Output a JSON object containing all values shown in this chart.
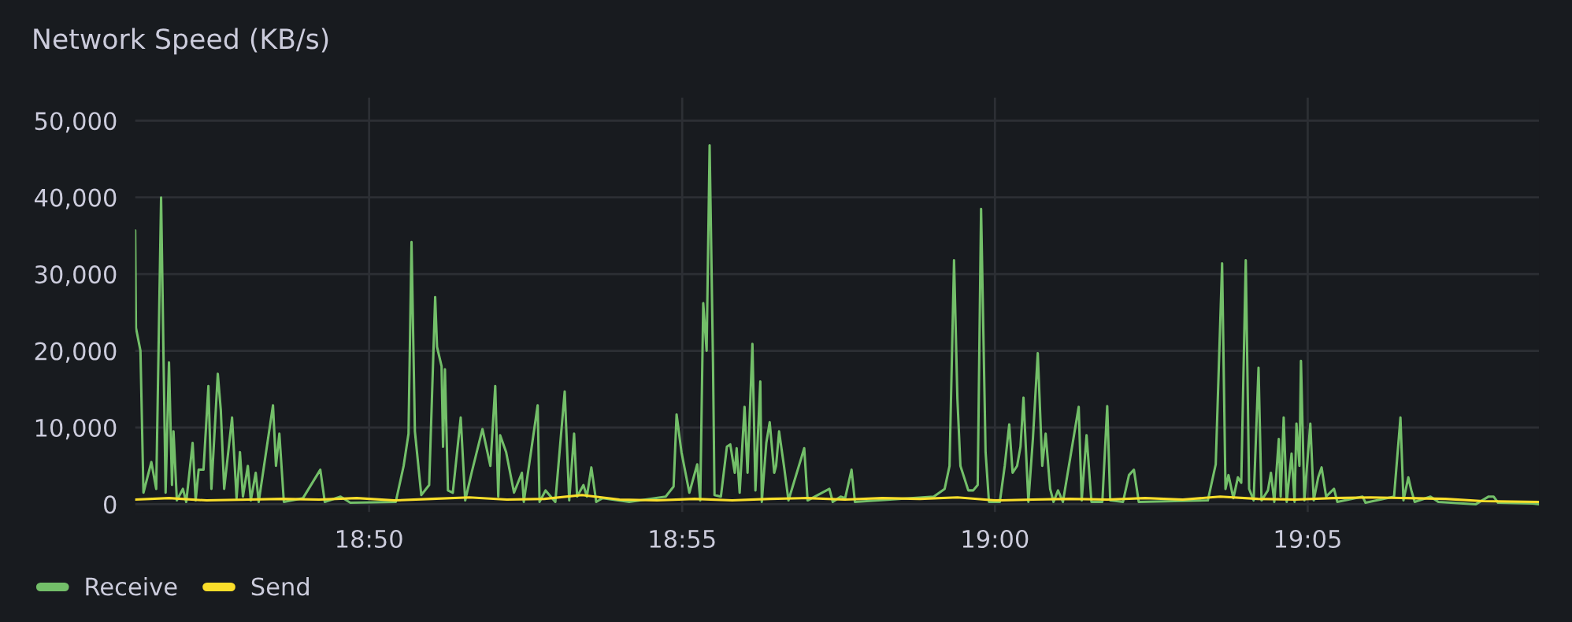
{
  "chart_data": {
    "type": "line",
    "title": "Network Speed (KB/s)",
    "xlim": [
      18.771,
      19.1449
    ],
    "xticks": [
      {
        "value": 18.8333,
        "label": "18:50"
      },
      {
        "value": 18.9167,
        "label": "18:55"
      },
      {
        "value": 19.0,
        "label": "19:00"
      },
      {
        "value": 19.0833,
        "label": "19:05"
      }
    ],
    "ylim": [
      -1000,
      53000
    ],
    "yticks": [
      {
        "value": 0,
        "label": "0"
      },
      {
        "value": 10000,
        "label": "10,000"
      },
      {
        "value": 20000,
        "label": "20,000"
      },
      {
        "value": 30000,
        "label": "30,000"
      },
      {
        "value": 40000,
        "label": "40,000"
      },
      {
        "value": 50000,
        "label": "50,000"
      }
    ],
    "grid": true,
    "legend": "bottom left",
    "marker": "none",
    "line_style": "solid",
    "series": [
      {
        "name": "Receive",
        "color": "#73bf69",
        "x": [
          18.771,
          18.7712,
          18.7724,
          18.7732,
          18.7753,
          18.7766,
          18.7779,
          18.7791,
          18.78,
          18.7808,
          18.7812,
          18.7821,
          18.7837,
          18.7846,
          18.7863,
          18.7871,
          18.7879,
          18.7892,
          18.7905,
          18.7913,
          18.793,
          18.7938,
          18.7947,
          18.7968,
          18.798,
          18.7989,
          18.7997,
          18.801,
          18.8018,
          18.8031,
          18.8039,
          18.8077,
          18.8085,
          18.8094,
          18.8106,
          18.8157,
          18.8203,
          18.8215,
          18.8257,
          18.8283,
          18.8404,
          18.8425,
          18.8438,
          18.8446,
          18.8455,
          18.8472,
          18.8493,
          18.8509,
          18.8514,
          18.8526,
          18.853,
          18.8535,
          18.8543,
          18.8556,
          18.8577,
          18.8589,
          18.8606,
          18.8635,
          18.8656,
          18.8669,
          18.8677,
          18.8682,
          18.8698,
          18.8719,
          18.874,
          18.8745,
          18.8782,
          18.8787,
          18.8803,
          18.8829,
          18.8854,
          18.8866,
          18.8879,
          18.8887,
          18.8904,
          18.8913,
          18.8925,
          18.8938,
          18.8955,
          18.9026,
          18.9123,
          18.9144,
          18.9152,
          18.9165,
          18.9186,
          18.9207,
          18.9215,
          18.9223,
          18.9232,
          18.924,
          18.9249,
          18.9253,
          18.927,
          18.9286,
          18.9295,
          18.9307,
          18.9312,
          18.932,
          18.9333,
          18.9341,
          18.9354,
          18.9362,
          18.9375,
          18.9379,
          18.9391,
          18.94,
          18.9412,
          18.9417,
          18.9425,
          18.9438,
          18.945,
          18.9492,
          18.9501,
          18.9559,
          18.9568,
          18.9589,
          18.9601,
          18.9618,
          18.9627,
          18.9837,
          18.9866,
          18.9879,
          18.9891,
          18.99,
          18.9908,
          18.9929,
          18.9942,
          18.9954,
          18.9963,
          18.9975,
          18.9984,
          19.0013,
          19.0026,
          19.0038,
          19.0047,
          19.0059,
          19.0068,
          19.0076,
          19.0089,
          19.0101,
          19.0114,
          19.0126,
          19.0135,
          19.0147,
          19.0156,
          19.0168,
          19.0181,
          19.0223,
          19.0231,
          19.0244,
          19.0257,
          19.0286,
          19.0299,
          19.0307,
          19.0341,
          19.0357,
          19.037,
          19.0383,
          19.0567,
          19.0588,
          19.0605,
          19.0614,
          19.0622,
          19.0635,
          19.0647,
          19.0656,
          19.0668,
          19.0677,
          19.0689,
          19.0702,
          19.071,
          19.0727,
          19.0735,
          19.0744,
          19.0756,
          19.0761,
          19.0769,
          19.0777,
          19.079,
          19.0798,
          19.0803,
          19.0811,
          19.0815,
          19.0824,
          19.084,
          19.0849,
          19.0861,
          19.087,
          19.0882,
          19.0903,
          19.0912,
          19.0979,
          19.0987,
          19.1063,
          19.108,
          19.1088,
          19.1101,
          19.1109,
          19.1118,
          19.116,
          19.1181,
          19.1281,
          19.1315,
          19.1328,
          19.134,
          19.1433,
          19.1449
        ],
        "values": [
          35700,
          23000,
          20000,
          1500,
          5500,
          2000,
          40000,
          1500,
          18500,
          2500,
          9500,
          500,
          2000,
          300,
          8000,
          500,
          4500,
          4500,
          15400,
          2000,
          17000,
          12300,
          2000,
          11300,
          800,
          6800,
          1000,
          5000,
          500,
          4100,
          300,
          12900,
          5000,
          9200,
          300,
          800,
          4500,
          300,
          1000,
          200,
          300,
          5000,
          9200,
          34200,
          9500,
          1200,
          2500,
          27000,
          20500,
          18000,
          7500,
          17600,
          1800,
          1500,
          11300,
          500,
          4100,
          9800,
          5000,
          15400,
          1000,
          9000,
          6800,
          1500,
          4100,
          300,
          12900,
          300,
          1800,
          300,
          14700,
          500,
          9200,
          1000,
          2500,
          1000,
          4800,
          300,
          800,
          300,
          1000,
          2300,
          11700,
          6800,
          1500,
          5200,
          500,
          26200,
          20000,
          46800,
          18500,
          1200,
          1000,
          7500,
          7800,
          4100,
          7300,
          1500,
          12700,
          4100,
          20900,
          1800,
          16000,
          300,
          8000,
          10700,
          4100,
          5000,
          9500,
          5000,
          500,
          7300,
          500,
          2000,
          300,
          1000,
          800,
          4500,
          300,
          1000,
          2000,
          5000,
          31800,
          13700,
          5000,
          1800,
          1800,
          2500,
          38500,
          6800,
          300,
          300,
          5000,
          10400,
          4100,
          5000,
          7500,
          13900,
          300,
          8500,
          19700,
          5000,
          9200,
          2000,
          300,
          1800,
          300,
          12700,
          500,
          9000,
          300,
          300,
          12800,
          500,
          300,
          3800,
          4500,
          300,
          500,
          5200,
          31400,
          2000,
          3800,
          800,
          3500,
          2800,
          31800,
          2000,
          500,
          17800,
          500,
          1800,
          4100,
          300,
          8500,
          1000,
          11300,
          300,
          6600,
          300,
          10500,
          5000,
          18700,
          500,
          10500,
          500,
          3500,
          4800,
          1000,
          2000,
          300,
          1000,
          200,
          1000,
          11300,
          500,
          3500,
          1800,
          300,
          1000,
          300,
          0,
          1000,
          1000,
          200,
          100,
          0
        ]
      },
      {
        "name": "Send",
        "color": "#fade2a",
        "x": [
          18.771,
          18.78,
          18.79,
          18.801,
          18.81,
          18.82,
          18.83,
          18.84,
          18.85,
          18.86,
          18.87,
          18.88,
          18.89,
          18.9,
          18.91,
          18.92,
          18.93,
          18.94,
          18.95,
          18.96,
          18.97,
          18.98,
          18.99,
          19.0,
          19.01,
          19.02,
          19.03,
          19.04,
          19.05,
          19.06,
          19.07,
          19.08,
          19.09,
          19.1,
          19.11,
          19.12,
          19.13,
          19.1449
        ],
        "values": [
          600,
          800,
          500,
          600,
          700,
          600,
          800,
          500,
          700,
          900,
          600,
          700,
          1200,
          600,
          500,
          700,
          500,
          700,
          800,
          600,
          800,
          700,
          900,
          500,
          600,
          700,
          600,
          800,
          600,
          1000,
          700,
          600,
          800,
          900,
          800,
          700,
          400,
          300
        ]
      }
    ]
  }
}
